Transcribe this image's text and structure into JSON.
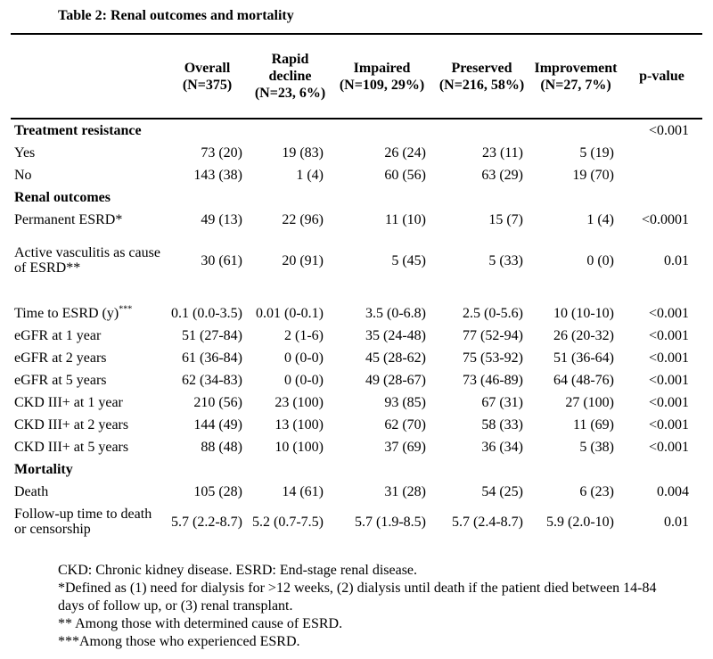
{
  "title": "Table 2: Renal outcomes and mortality",
  "colors": {
    "background": "#ffffff",
    "text": "#000000",
    "rule": "#000000"
  },
  "table": {
    "header": [
      {
        "lines": []
      },
      {
        "lines": [
          "Overall",
          "(N=375)"
        ]
      },
      {
        "lines": [
          "Rapid",
          "decline",
          "(N=23, 6%)"
        ]
      },
      {
        "lines": [
          "Impaired",
          "(N=109, 29%)"
        ]
      },
      {
        "lines": [
          "Preserved",
          "(N=216, 58%)"
        ]
      },
      {
        "lines": [
          "Improvement",
          "(N=27, 7%)"
        ]
      },
      {
        "lines": [
          "p-value"
        ]
      }
    ],
    "rows": [
      {
        "type": "section",
        "label": "Treatment resistance",
        "values": [
          "",
          "",
          "",
          "",
          ""
        ],
        "p": "<0.001"
      },
      {
        "type": "data",
        "label": "Yes",
        "values": [
          "73 (20)",
          "19 (83)",
          "26 (24)",
          "23 (11)",
          "5 (19)"
        ],
        "p": ""
      },
      {
        "type": "data",
        "label": "No",
        "values": [
          "143 (38)",
          "1 (4)",
          "60 (56)",
          "63 (29)",
          "19 (70)"
        ],
        "p": ""
      },
      {
        "type": "section",
        "label": "Renal outcomes",
        "values": [
          "",
          "",
          "",
          "",
          ""
        ],
        "p": ""
      },
      {
        "type": "data",
        "label": "Permanent ESRD*",
        "values": [
          "49 (13)",
          "22 (96)",
          "11 (10)",
          "15 (7)",
          "1 (4)"
        ],
        "p": "<0.0001"
      },
      {
        "type": "data",
        "label": [
          "Active vasculitis as cause",
          "of ESRD**"
        ],
        "values": [
          "30 (61)",
          "20 (91)",
          "5 (45)",
          "5 (33)",
          "0 (0)"
        ],
        "p": "0.01",
        "cls": "gap-row"
      },
      {
        "type": "data",
        "label": "Time to ESRD (y)",
        "label_sup": "***",
        "values": [
          "0.1 (0.0-3.5)",
          "0.01 (0-0.1)",
          "3.5 (0-6.8)",
          "2.5 (0-5.6)",
          "10 (10-10)"
        ],
        "p": "<0.001",
        "cls": "gap-top"
      },
      {
        "type": "data",
        "label": "eGFR at 1 year",
        "values": [
          "51 (27-84)",
          "2 (1-6)",
          "35 (24-48)",
          "77 (52-94)",
          "26 (20-32)"
        ],
        "p": "<0.001"
      },
      {
        "type": "data",
        "label": "eGFR at 2 years",
        "values": [
          "61 (36-84)",
          "0 (0-0)",
          "45 (28-62)",
          "75 (53-92)",
          "51 (36-64)"
        ],
        "p": "<0.001"
      },
      {
        "type": "data",
        "label": "eGFR at 5 years",
        "values": [
          "62 (34-83)",
          "0 (0-0)",
          "49 (28-67)",
          "73 (46-89)",
          "64 (48-76)"
        ],
        "p": "<0.001"
      },
      {
        "type": "data",
        "label": "CKD III+ at 1 year",
        "values": [
          "210 (56)",
          "23 (100)",
          "93 (85)",
          "67 (31)",
          "27 (100)"
        ],
        "p": "<0.001"
      },
      {
        "type": "data",
        "label": "CKD III+ at 2 years",
        "values": [
          "144 (49)",
          "13 (100)",
          "62 (70)",
          "58 (33)",
          "11 (69)"
        ],
        "p": "<0.001"
      },
      {
        "type": "data",
        "label": "CKD III+ at 5 years",
        "values": [
          "88 (48)",
          "10 (100)",
          "37 (69)",
          "36 (34)",
          "5 (38)"
        ],
        "p": "<0.001"
      },
      {
        "type": "section",
        "label": "Mortality",
        "values": [
          "",
          "",
          "",
          "",
          ""
        ],
        "p": ""
      },
      {
        "type": "data",
        "label": "Death",
        "values": [
          "105 (28)",
          "14 (61)",
          "31 (28)",
          "54 (25)",
          "6 (23)"
        ],
        "p": "0.004"
      },
      {
        "type": "data",
        "label": [
          "Follow-up time to death",
          "or censorship"
        ],
        "values": [
          "5.7 (2.2-8.7)",
          "5.2 (0.7-7.5)",
          "5.7 (1.9-8.5)",
          "5.7 (2.4-8.7)",
          "5.9 (2.0-10)"
        ],
        "p": "0.01"
      }
    ]
  },
  "footnotes": {
    "lines": [
      "CKD: Chronic kidney disease. ESRD: End-stage renal disease.",
      "*Defined as (1) need for dialysis for >12 weeks, (2) dialysis until death if the patient died between 14-84",
      "days of follow up, or (3) renal transplant.",
      "** Among those with determined cause of ESRD.",
      "***Among those who experienced ESRD."
    ]
  }
}
